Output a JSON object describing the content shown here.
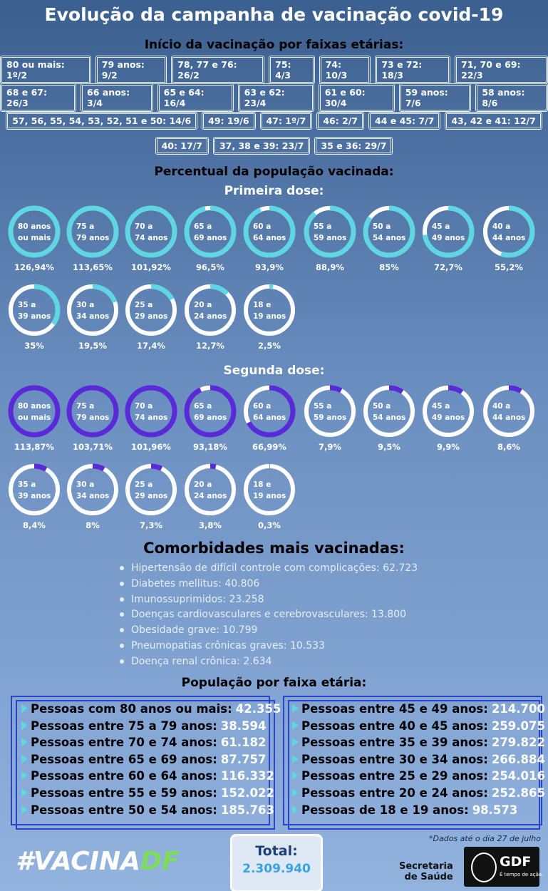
{
  "title": "Evolução da campanha de vacinação covid-19",
  "schedule": {
    "title": "Início da vacinação por faixas etárias:",
    "rows": [
      [
        "80 ou mais: 1º/2",
        "79 anos: 9/2",
        "78, 77 e 76: 26/2",
        "75: 4/3",
        "74: 10/3",
        "73 e 72: 18/3",
        "71, 70 e 69: 22/3"
      ],
      [
        "68 e 67: 26/3",
        "66 anos: 3/4",
        "65 e 64: 16/4",
        "63 e 62: 23/4",
        "61 e 60: 30/4",
        "59 anos: 7/6",
        "58 anos: 8/6"
      ],
      [
        "57, 56, 55, 54, 53, 52, 51 e 50: 14/6",
        "49: 19/6",
        "47: 1º/7",
        "46: 2/7",
        "44 e 45: 7/7",
        "43, 42 e 41: 12/7"
      ],
      [
        "40: 17/7",
        "37, 38 e 39: 23/7",
        "35 e 36: 29/7"
      ]
    ]
  },
  "coverage_title": "Percentual da população vacinada:",
  "doses": [
    {
      "title": "Primeira dose:",
      "color": "#5fd6e2",
      "rings": [
        {
          "label": [
            "80 anos",
            "ou mais"
          ],
          "value": 126.94,
          "value_label": "126,94%"
        },
        {
          "label": [
            "75 a",
            "79 anos"
          ],
          "value": 113.65,
          "value_label": "113,65%"
        },
        {
          "label": [
            "70 a",
            "74 anos"
          ],
          "value": 101.92,
          "value_label": "101,92%"
        },
        {
          "label": [
            "65 a",
            "69 anos"
          ],
          "value": 96.5,
          "value_label": "96,5%"
        },
        {
          "label": [
            "60 a",
            "64 anos"
          ],
          "value": 93.9,
          "value_label": "93,9%"
        },
        {
          "label": [
            "55 a",
            "59 anos"
          ],
          "value": 88.9,
          "value_label": "88,9%"
        },
        {
          "label": [
            "50 a",
            "54 anos"
          ],
          "value": 85,
          "value_label": "85%"
        },
        {
          "label": [
            "45 a",
            "49 anos"
          ],
          "value": 72.7,
          "value_label": "72,7%"
        },
        {
          "label": [
            "40 a",
            "44 anos"
          ],
          "value": 55.2,
          "value_label": "55,2%"
        },
        {
          "label": [
            "35 a",
            "39 anos"
          ],
          "value": 35,
          "value_label": "35%"
        },
        {
          "label": [
            "30 a",
            "34 anos"
          ],
          "value": 19.5,
          "value_label": "19,5%"
        },
        {
          "label": [
            "25 a",
            "29 anos"
          ],
          "value": 17.4,
          "value_label": "17,4%"
        },
        {
          "label": [
            "20 a",
            "24 anos"
          ],
          "value": 12.7,
          "value_label": "12,7%"
        },
        {
          "label": [
            "18 e",
            "19 anos"
          ],
          "value": 2.5,
          "value_label": "2,5%"
        }
      ]
    },
    {
      "title": "Segunda dose:",
      "color": "#5a2ad8",
      "rings": [
        {
          "label": [
            "80 anos",
            "ou mais"
          ],
          "value": 113.87,
          "value_label": "113,87%"
        },
        {
          "label": [
            "75 a",
            "79 anos"
          ],
          "value": 103.71,
          "value_label": "103,71%"
        },
        {
          "label": [
            "70 a",
            "74 anos"
          ],
          "value": 101.96,
          "value_label": "101,96%"
        },
        {
          "label": [
            "65 a",
            "69 anos"
          ],
          "value": 93.18,
          "value_label": "93,18%"
        },
        {
          "label": [
            "60 a",
            "64 anos"
          ],
          "value": 66.99,
          "value_label": "66,99%"
        },
        {
          "label": [
            "55 a",
            "59 anos"
          ],
          "value": 7.9,
          "value_label": "7,9%"
        },
        {
          "label": [
            "50 a",
            "54 anos"
          ],
          "value": 9.5,
          "value_label": "9,5%"
        },
        {
          "label": [
            "45 a",
            "49 anos"
          ],
          "value": 9.9,
          "value_label": "9,9%"
        },
        {
          "label": [
            "40 a",
            "44 anos"
          ],
          "value": 8.6,
          "value_label": "8,6%"
        },
        {
          "label": [
            "35 a",
            "39 anos"
          ],
          "value": 8.4,
          "value_label": "8,4%"
        },
        {
          "label": [
            "30 a",
            "34 anos"
          ],
          "value": 8,
          "value_label": "8%"
        },
        {
          "label": [
            "25 a",
            "29 anos"
          ],
          "value": 7.3,
          "value_label": "7,3%"
        },
        {
          "label": [
            "20 a",
            "24 anos"
          ],
          "value": 3.8,
          "value_label": "3,8%"
        },
        {
          "label": [
            "18 e",
            "19 anos"
          ],
          "value": 0.3,
          "value_label": "0,3%"
        }
      ]
    }
  ],
  "comorbidities": {
    "title": "Comorbidades mais vacinadas:",
    "items": [
      "Hipertensão de difícil controle com complicações: 62.723",
      "Diabetes mellitus: 40.806",
      "Imunossuprimidos: 23.258",
      "Doenças cardiovasculares e cerebrovasculares: 13.800",
      "Obesidade grave: 10.799",
      "Pneumopatias crônicas graves: 10.533",
      "Doença renal crônica: 2.634"
    ]
  },
  "population": {
    "title": "População por faixa etária:",
    "columns": [
      [
        {
          "label": "Pessoas com 80 anos ou mais:",
          "value": "42.355"
        },
        {
          "label": "Pessoas entre 75 a 79 anos:",
          "value": "38.594"
        },
        {
          "label": "Pessoas entre 70 e 74 anos:",
          "value": "61.182"
        },
        {
          "label": "Pessoas entre 65 e 69 anos:",
          "value": "87.757"
        },
        {
          "label": "Pessoas entre 60 e 64 anos:",
          "value": "116.332"
        },
        {
          "label": "Pessoas entre 55 e 59 anos:",
          "value": "152.022"
        },
        {
          "label": "Pessoas entre 50 e 54 anos:",
          "value": "185.763"
        }
      ],
      [
        {
          "label": "Pessoas entre 45 e 49 anos:",
          "value": "214.700"
        },
        {
          "label": "Pessoas entre 40 e 45 anos:",
          "value": "259.075"
        },
        {
          "label": "Pessoas entre 35 e 39 anos:",
          "value": "279.822"
        },
        {
          "label": "Pessoas entre 30 e 34 anos:",
          "value": "266.884"
        },
        {
          "label": "Pessoas entre 25 e 29 anos:",
          "value": "254.016"
        },
        {
          "label": "Pessoas entre 20 e 24 anos:",
          "value": "252.865"
        },
        {
          "label": "Pessoas de 18 e 19 anos:",
          "value": "98.573"
        }
      ]
    ]
  },
  "note": "*Dados até o dia 27 de julho",
  "hashtag": [
    "#VACINA",
    "DF"
  ],
  "total": {
    "label": "Total:",
    "value": "2.309.940"
  },
  "sponsor": {
    "lines": [
      "Secretaria",
      "de Saúde"
    ],
    "logo": "GDF",
    "slogan": "É tempo de ação."
  }
}
